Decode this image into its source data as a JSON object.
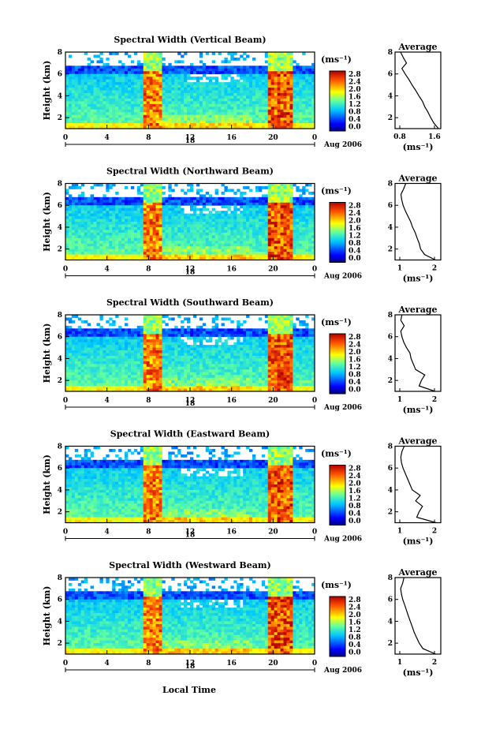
{
  "figure": {
    "xlabel": "Local Time",
    "date_label": "Aug 2006",
    "day_label": "18",
    "colorbar_unit": "(ms⁻¹)",
    "colorbar_ticks": [
      "2.8",
      "2.4",
      "2.0",
      "1.6",
      "1.2",
      "0.8",
      "0.4",
      "0.0"
    ],
    "panel_ylabel": "Height (km)",
    "profile_title": "Average",
    "profile_xunit": "(ms⁻¹)",
    "height_ticks": [
      "8",
      "6",
      "4",
      "2"
    ],
    "time_ticks": [
      "0",
      "4",
      "8",
      "12",
      "16",
      "20",
      "0"
    ]
  },
  "chart_data": [
    {
      "type": "heatmap",
      "title": "Spectral Width (Vertical Beam)",
      "ylabel": "Height (km)",
      "x": [
        0,
        4,
        8,
        12,
        16,
        20,
        24
      ],
      "xlim": [
        0,
        24
      ],
      "ylim": [
        1,
        8
      ],
      "color_range": [
        0.0,
        2.8
      ],
      "profile": {
        "title": "Average",
        "xlim": [
          0.8,
          1.8
        ],
        "xticks": [
          "0.8",
          "1.6"
        ],
        "heights": [
          1.0,
          1.5,
          2.0,
          2.5,
          3.0,
          3.5,
          4.0,
          4.5,
          5.0,
          5.5,
          6.0,
          6.5,
          7.0,
          7.5,
          8.0
        ],
        "values": [
          1.75,
          1.65,
          1.58,
          1.52,
          1.45,
          1.4,
          1.32,
          1.25,
          1.17,
          1.1,
          1.02,
          0.95,
          1.05,
          0.98,
          0.92
        ]
      }
    },
    {
      "type": "heatmap",
      "title": "Spectral Width (Northward Beam)",
      "ylabel": "Height (km)",
      "x": [
        0,
        4,
        8,
        12,
        16,
        20,
        24
      ],
      "xlim": [
        0,
        24
      ],
      "ylim": [
        1,
        8
      ],
      "color_range": [
        0.0,
        2.8
      ],
      "profile": {
        "title": "Average",
        "xlim": [
          0.8,
          2.5
        ],
        "xticks": [
          "1",
          "2"
        ],
        "heights": [
          1.0,
          1.5,
          2.0,
          2.5,
          3.0,
          3.5,
          4.0,
          4.5,
          5.0,
          5.5,
          6.0,
          6.5,
          7.0,
          7.5,
          8.0
        ],
        "values": [
          2.3,
          1.9,
          1.75,
          1.7,
          1.62,
          1.55,
          1.45,
          1.38,
          1.28,
          1.18,
          1.1,
          1.05,
          1.02,
          1.12,
          1.2
        ]
      }
    },
    {
      "type": "heatmap",
      "title": "Spectral Width (Southward Beam)",
      "ylabel": "Height (km)",
      "x": [
        0,
        4,
        8,
        12,
        16,
        20,
        24
      ],
      "xlim": [
        0,
        24
      ],
      "ylim": [
        1,
        8
      ],
      "color_range": [
        0.0,
        2.8
      ],
      "profile": {
        "title": "Average",
        "xlim": [
          0.8,
          2.8
        ],
        "xticks": [
          "1",
          "2"
        ],
        "heights": [
          1.0,
          1.5,
          2.0,
          2.5,
          3.0,
          3.5,
          4.0,
          4.5,
          5.0,
          5.5,
          6.0,
          6.5,
          7.0,
          7.5,
          8.0
        ],
        "values": [
          2.55,
          1.85,
          1.95,
          2.1,
          1.7,
          1.6,
          1.5,
          1.45,
          1.3,
          1.18,
          1.1,
          1.05,
          1.2,
          1.05,
          1.1
        ]
      }
    },
    {
      "type": "heatmap",
      "title": "Spectral Width (Eastward Beam)",
      "ylabel": "Height (km)",
      "x": [
        0,
        4,
        8,
        12,
        16,
        20,
        24
      ],
      "xlim": [
        0,
        24
      ],
      "ylim": [
        1,
        8
      ],
      "color_range": [
        0.0,
        2.8
      ],
      "profile": {
        "title": "Average",
        "xlim": [
          0.8,
          2.8
        ],
        "xticks": [
          "1",
          "2"
        ],
        "heights": [
          1.0,
          1.5,
          2.0,
          2.5,
          3.0,
          3.5,
          4.0,
          4.5,
          5.0,
          5.5,
          6.0,
          6.5,
          7.0,
          7.5,
          8.0
        ],
        "values": [
          2.6,
          1.75,
          1.85,
          2.0,
          1.7,
          1.9,
          1.55,
          1.45,
          1.35,
          1.25,
          1.15,
          1.08,
          1.05,
          1.1,
          1.2
        ]
      }
    },
    {
      "type": "heatmap",
      "title": "Spectral Width (Westward Beam)",
      "ylabel": "Height (km)",
      "x": [
        0,
        4,
        8,
        12,
        16,
        20,
        24
      ],
      "xlim": [
        0,
        24
      ],
      "ylim": [
        1,
        8
      ],
      "color_range": [
        0.0,
        2.8
      ],
      "profile": {
        "title": "Average",
        "xlim": [
          0.8,
          2.6
        ],
        "xticks": [
          "1",
          "2"
        ],
        "heights": [
          1.0,
          1.5,
          2.0,
          2.5,
          3.0,
          3.5,
          4.0,
          4.5,
          5.0,
          5.5,
          6.0,
          6.5,
          7.0,
          7.5,
          8.0
        ],
        "values": [
          2.4,
          1.9,
          1.75,
          1.65,
          1.55,
          1.48,
          1.4,
          1.32,
          1.25,
          1.18,
          1.1,
          1.05,
          1.02,
          1.1,
          1.15
        ]
      }
    }
  ]
}
